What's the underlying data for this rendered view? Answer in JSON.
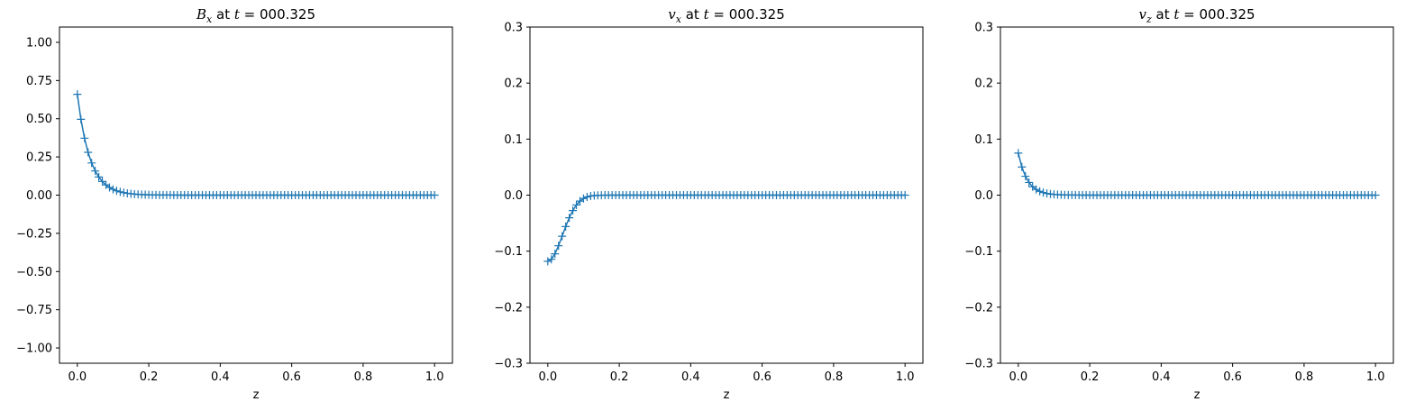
{
  "chart_data": [
    {
      "type": "line",
      "marker": "+",
      "color": "#1f77b4",
      "title": {
        "symbol": "B",
        "subscript": "x",
        "text": "at",
        "tvar": "t",
        "equals": "=",
        "time": "000.325"
      },
      "xlabel": "z",
      "ylabel": "",
      "xlim": [
        -0.05,
        1.05
      ],
      "ylim": [
        -1.1,
        1.1
      ],
      "xticks": [
        0.0,
        0.2,
        0.4,
        0.6,
        0.8,
        1.0
      ],
      "xtick_labels": [
        "0.0",
        "0.2",
        "0.4",
        "0.6",
        "0.8",
        "1.0"
      ],
      "yticks": [
        -1.0,
        -0.75,
        -0.5,
        -0.25,
        0.0,
        0.25,
        0.5,
        0.75,
        1.0
      ],
      "ytick_labels": [
        "−1.00",
        "−0.75",
        "−0.50",
        "−0.25",
        "0.00",
        "0.25",
        "0.50",
        "0.75",
        "1.00"
      ],
      "grid": false,
      "n_points": 101,
      "profile": {
        "amplitude": 0.66,
        "decay_length": 0.035,
        "shape": "exponential"
      }
    },
    {
      "type": "line",
      "marker": "+",
      "color": "#1f77b4",
      "title": {
        "symbol": "v",
        "subscript": "x",
        "text": "at",
        "tvar": "t",
        "equals": "=",
        "time": "000.325"
      },
      "xlabel": "z",
      "ylabel": "",
      "xlim": [
        -0.05,
        1.05
      ],
      "ylim": [
        -0.3,
        0.3
      ],
      "xticks": [
        0.0,
        0.2,
        0.4,
        0.6,
        0.8,
        1.0
      ],
      "xtick_labels": [
        "0.0",
        "0.2",
        "0.4",
        "0.6",
        "0.8",
        "1.0"
      ],
      "yticks": [
        -0.3,
        -0.2,
        -0.1,
        0.0,
        0.1,
        0.2,
        0.3
      ],
      "ytick_labels": [
        "−0.3",
        "−0.2",
        "−0.1",
        "0.0",
        "0.1",
        "0.2",
        "0.3"
      ],
      "grid": false,
      "n_points": 101,
      "profile": {
        "amplitude": -0.118,
        "decay_length": 0.058,
        "shape": "gaussian"
      }
    },
    {
      "type": "line",
      "marker": "+",
      "color": "#1f77b4",
      "title": {
        "symbol": "v",
        "subscript": "z",
        "text": "at",
        "tvar": "t",
        "equals": "=",
        "time": "000.325"
      },
      "xlabel": "z",
      "ylabel": "",
      "xlim": [
        -0.05,
        1.05
      ],
      "ylim": [
        -0.3,
        0.3
      ],
      "xticks": [
        0.0,
        0.2,
        0.4,
        0.6,
        0.8,
        1.0
      ],
      "xtick_labels": [
        "0.0",
        "0.2",
        "0.4",
        "0.6",
        "0.8",
        "1.0"
      ],
      "yticks": [
        -0.3,
        -0.2,
        -0.1,
        0.0,
        0.1,
        0.2,
        0.3
      ],
      "ytick_labels": [
        "−0.3",
        "−0.2",
        "−0.1",
        "0.0",
        "0.1",
        "0.2",
        "0.3"
      ],
      "grid": false,
      "n_points": 101,
      "profile": {
        "amplitude": 0.075,
        "decay_length": 0.025,
        "shape": "exponential"
      }
    }
  ]
}
